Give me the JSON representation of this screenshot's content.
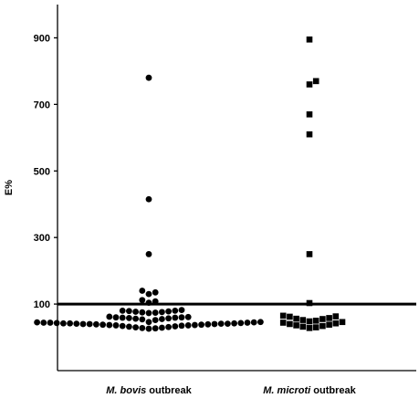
{
  "chart_data": {
    "type": "scatter",
    "title": "",
    "ylabel": "E%",
    "xlabel": "",
    "ylim": [
      -100,
      1000
    ],
    "yticks": [
      100,
      300,
      500,
      700,
      900
    ],
    "reference_line": 100,
    "categories": [
      {
        "italic": "M. bovis",
        "rest": " outbreak"
      },
      {
        "italic": "M. microti",
        "rest": " outbreak"
      }
    ],
    "series": [
      {
        "category_index": 0,
        "marker": "circle",
        "values": [
          780,
          415,
          250,
          140,
          135,
          130,
          112,
          108,
          104,
          82,
          80,
          80,
          79,
          78,
          77,
          76,
          75,
          74,
          73,
          62,
          61,
          60,
          60,
          59,
          59,
          58,
          57,
          56,
          55,
          54,
          52,
          46,
          46,
          45,
          45,
          44,
          44,
          44,
          43,
          43,
          42,
          42,
          42,
          41,
          41,
          41,
          40,
          40,
          40,
          39,
          39,
          38,
          38,
          37,
          37,
          36,
          36,
          35,
          34,
          33,
          32,
          31,
          30,
          29,
          28,
          27,
          26
        ]
      },
      {
        "category_index": 1,
        "marker": "square",
        "values": [
          895,
          770,
          760,
          670,
          610,
          250,
          103,
          65,
          63,
          62,
          58,
          56,
          55,
          52,
          50,
          48,
          46,
          44,
          42,
          40,
          38,
          36,
          34,
          32,
          30,
          28
        ]
      }
    ]
  }
}
